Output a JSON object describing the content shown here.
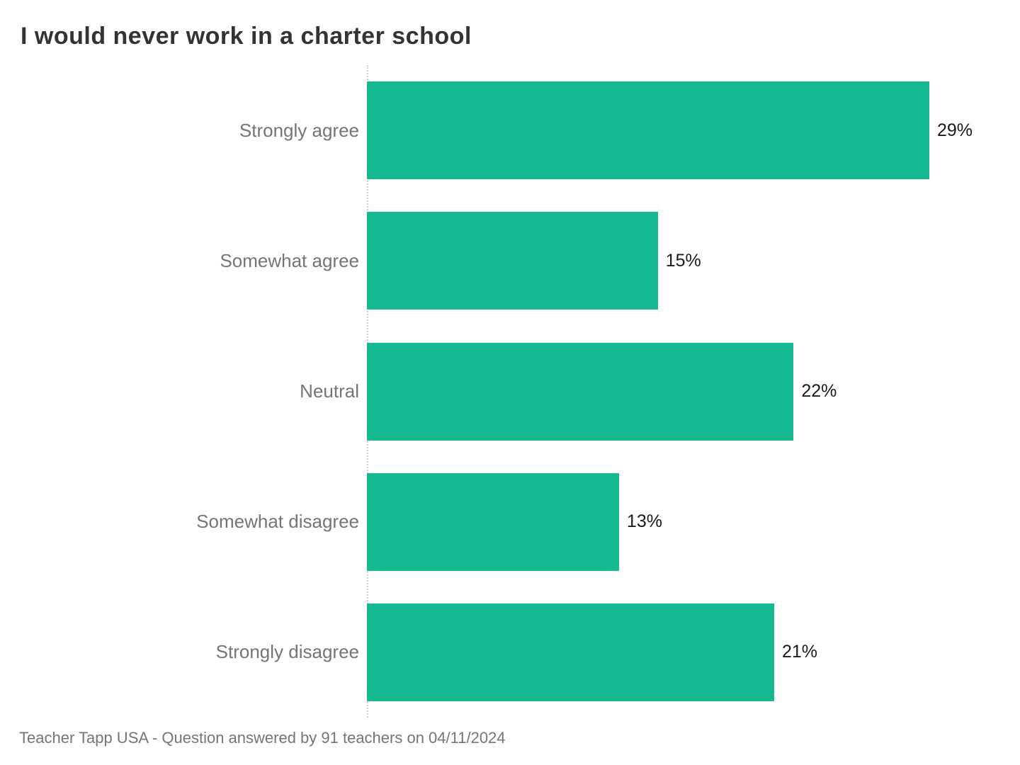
{
  "title": "I would never work in a charter school",
  "footer": "Teacher Tapp USA - Question answered by 91 teachers on 04/11/2024",
  "colors": {
    "bar": "#15b890",
    "title_text": "#333333",
    "category_text": "#757575",
    "value_text": "#1a1a1a",
    "footer_text": "#757575",
    "axis_dotted_line": "#cfcfcf",
    "background": "#ffffff"
  },
  "chart_data": {
    "type": "bar",
    "orientation": "horizontal",
    "title": "I would never work in a charter school",
    "categories": [
      "Strongly agree",
      "Somewhat agree",
      "Neutral",
      "Somewhat disagree",
      "Strongly disagree"
    ],
    "values": [
      29,
      15,
      22,
      13,
      21
    ],
    "value_labels": [
      "29%",
      "15%",
      "22%",
      "13%",
      "21%"
    ],
    "xlabel": "",
    "ylabel": "",
    "xlim": [
      0,
      29
    ],
    "grid": false,
    "legend": false,
    "source_note": "Teacher Tapp USA - Question answered by 91 teachers on 04/11/2024"
  }
}
